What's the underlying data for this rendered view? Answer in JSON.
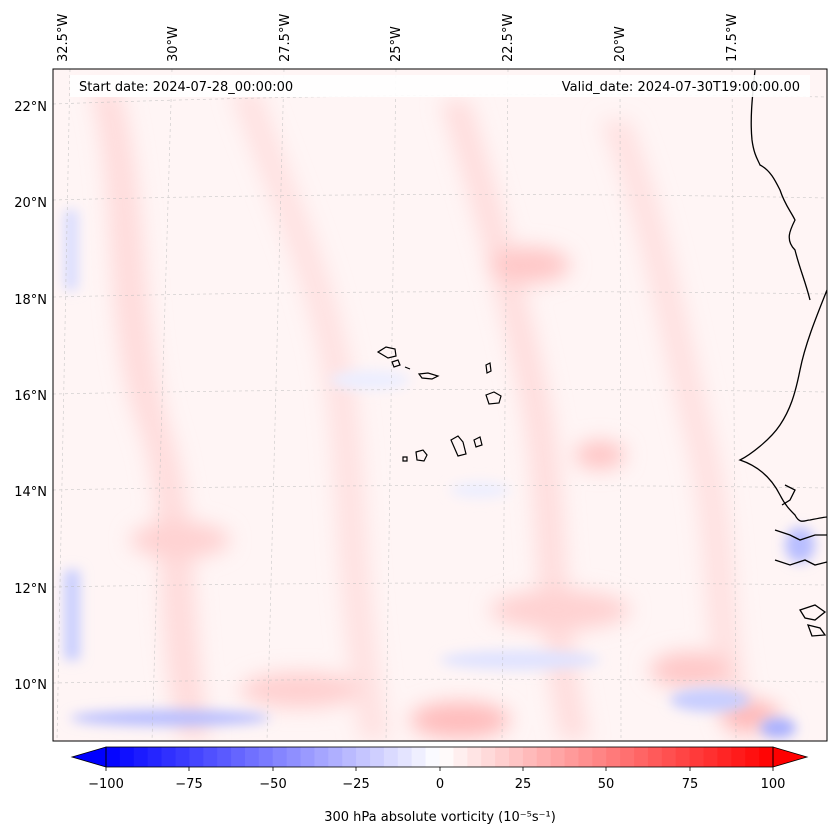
{
  "header": {
    "start_date": "Start date: 2024-07-28_00:00:00",
    "valid_date": "Valid_date: 2024-07-30T19:00:00.00"
  },
  "map": {
    "lon_labels": [
      "32.5°W",
      "30°W",
      "27.5°W",
      "25°W",
      "22.5°W",
      "20°W",
      "17.5°W"
    ],
    "lat_labels": [
      "22°N",
      "20°N",
      "18°N",
      "16°N",
      "14°N",
      "12°N",
      "10°N"
    ],
    "field": "300 hPa absolute vorticity",
    "colors": {
      "negative": "#0000ff",
      "positive": "#ff0000",
      "neutral": "#ffffff",
      "coastline": "#000000",
      "grid": "#b0b0b0"
    }
  },
  "colorbar": {
    "label": "300 hPa absolute vorticity (10⁻⁵s⁻¹)",
    "ticks": [
      "−100",
      "−75",
      "−50",
      "−25",
      "0",
      "25",
      "50",
      "75",
      "100"
    ],
    "range": [
      -100,
      100
    ],
    "levels": 48
  }
}
